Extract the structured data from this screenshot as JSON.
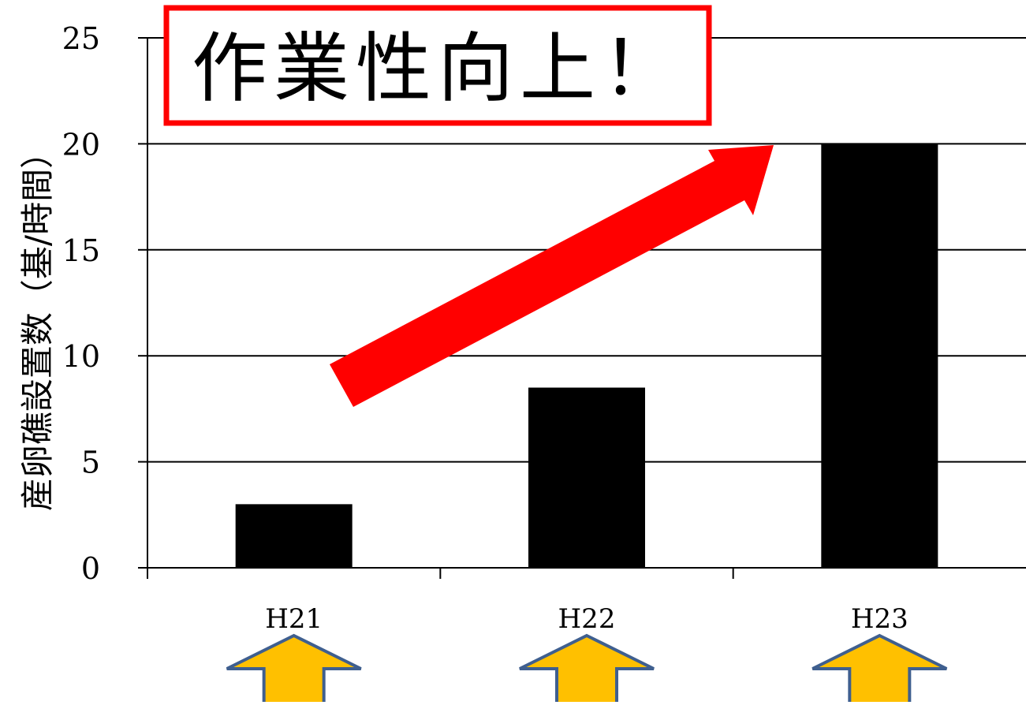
{
  "chart_data": {
    "type": "bar",
    "categories": [
      "H21",
      "H22",
      "H23"
    ],
    "values": [
      3,
      8.5,
      20
    ],
    "ylim": [
      0,
      25
    ],
    "yticks": [
      0,
      5,
      10,
      15,
      20,
      25
    ],
    "ylabel": "産卵礁設置数（基/時間）",
    "xlabel": "",
    "grid": true,
    "annotation": "作業性向上！",
    "colors": {
      "bar": "#000000",
      "annotation_border": "#ff0000",
      "trend_arrow": "#ff0000",
      "marker_arrow_fill": "#ffc000",
      "marker_arrow_stroke": "#3f5f8f"
    },
    "marker_icon": "up-arrow-icon"
  }
}
